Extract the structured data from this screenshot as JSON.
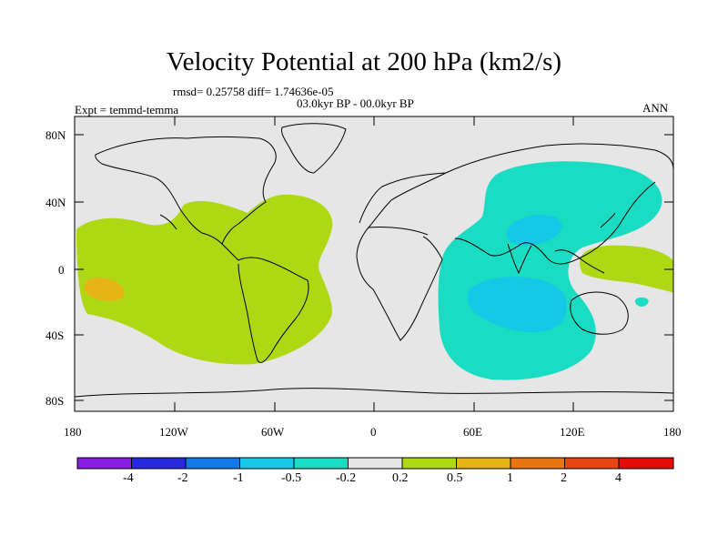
{
  "title": "Velocity Potential at 200 hPa (km2/s)",
  "stats": "rmsd= 0.25758 diff= 1.74636e-05",
  "period": "03.0kyr BP - 00.0kyr BP",
  "experiment": "Expt = temmd-temma",
  "season": "ANN",
  "y_axis_labels": [
    "80N",
    "40N",
    "0",
    "40S",
    "80S"
  ],
  "x_axis_labels": [
    "180",
    "120W",
    "60W",
    "0",
    "60E",
    "120E",
    "180"
  ],
  "colorbar": {
    "labels": [
      "-4",
      "-2",
      "-1",
      "-0.5",
      "-0.2",
      "0.2",
      "0.5",
      "1",
      "2",
      "4"
    ],
    "colors": [
      "#8a1ee0",
      "#2828dc",
      "#1478e6",
      "#14c8e6",
      "#19dcc3",
      "#e6e6e6",
      "#afd814",
      "#e6b414",
      "#e67814",
      "#e64614",
      "#e60a0a"
    ]
  },
  "colors": {
    "background_map": "#e6e6e6",
    "positive_0_2": "#afd814",
    "positive_1": "#e6b414",
    "negative_0_2": "#19dcc3",
    "negative_0_5": "#14c8e6"
  }
}
